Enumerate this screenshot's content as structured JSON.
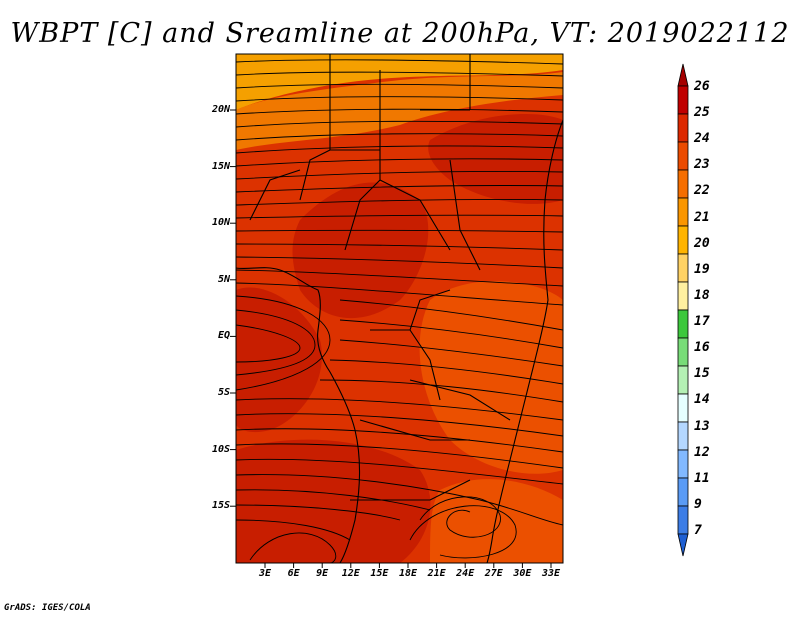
{
  "title": "WBPT [C] and Sreamline at 200hPa, VT: 2019022112",
  "credit": "GrADS: IGES/COLA",
  "lat_labels": [
    "20N",
    "15N",
    "10N",
    "5N",
    "EQ",
    "5S",
    "10S",
    "15S"
  ],
  "lon_labels": [
    "3E",
    "6E",
    "9E",
    "12E",
    "15E",
    "18E",
    "21E",
    "24E",
    "27E",
    "30E",
    "33E"
  ],
  "colorbar": {
    "labels": [
      "26",
      "25",
      "24",
      "23",
      "22",
      "21",
      "20",
      "19",
      "18",
      "17",
      "16",
      "15",
      "14",
      "13",
      "12",
      "11",
      "9",
      "7"
    ],
    "colors": [
      "#a50000",
      "#c00000",
      "#dc2800",
      "#eb4b00",
      "#f56e00",
      "#fa9600",
      "#ffb400",
      "#ffd264",
      "#fff0a0",
      "#3cc83c",
      "#78dc78",
      "#b4f0b4",
      "#e6ffff",
      "#b4d7ff",
      "#82b9ff",
      "#5a9bf5",
      "#3c7de6",
      "#1e5fd2"
    ]
  },
  "map_colors": {
    "deep": "#c81e00",
    "mid": "#dc3200",
    "light": "#eb5000",
    "orange": "#f07800",
    "pale": "#f5a000"
  }
}
